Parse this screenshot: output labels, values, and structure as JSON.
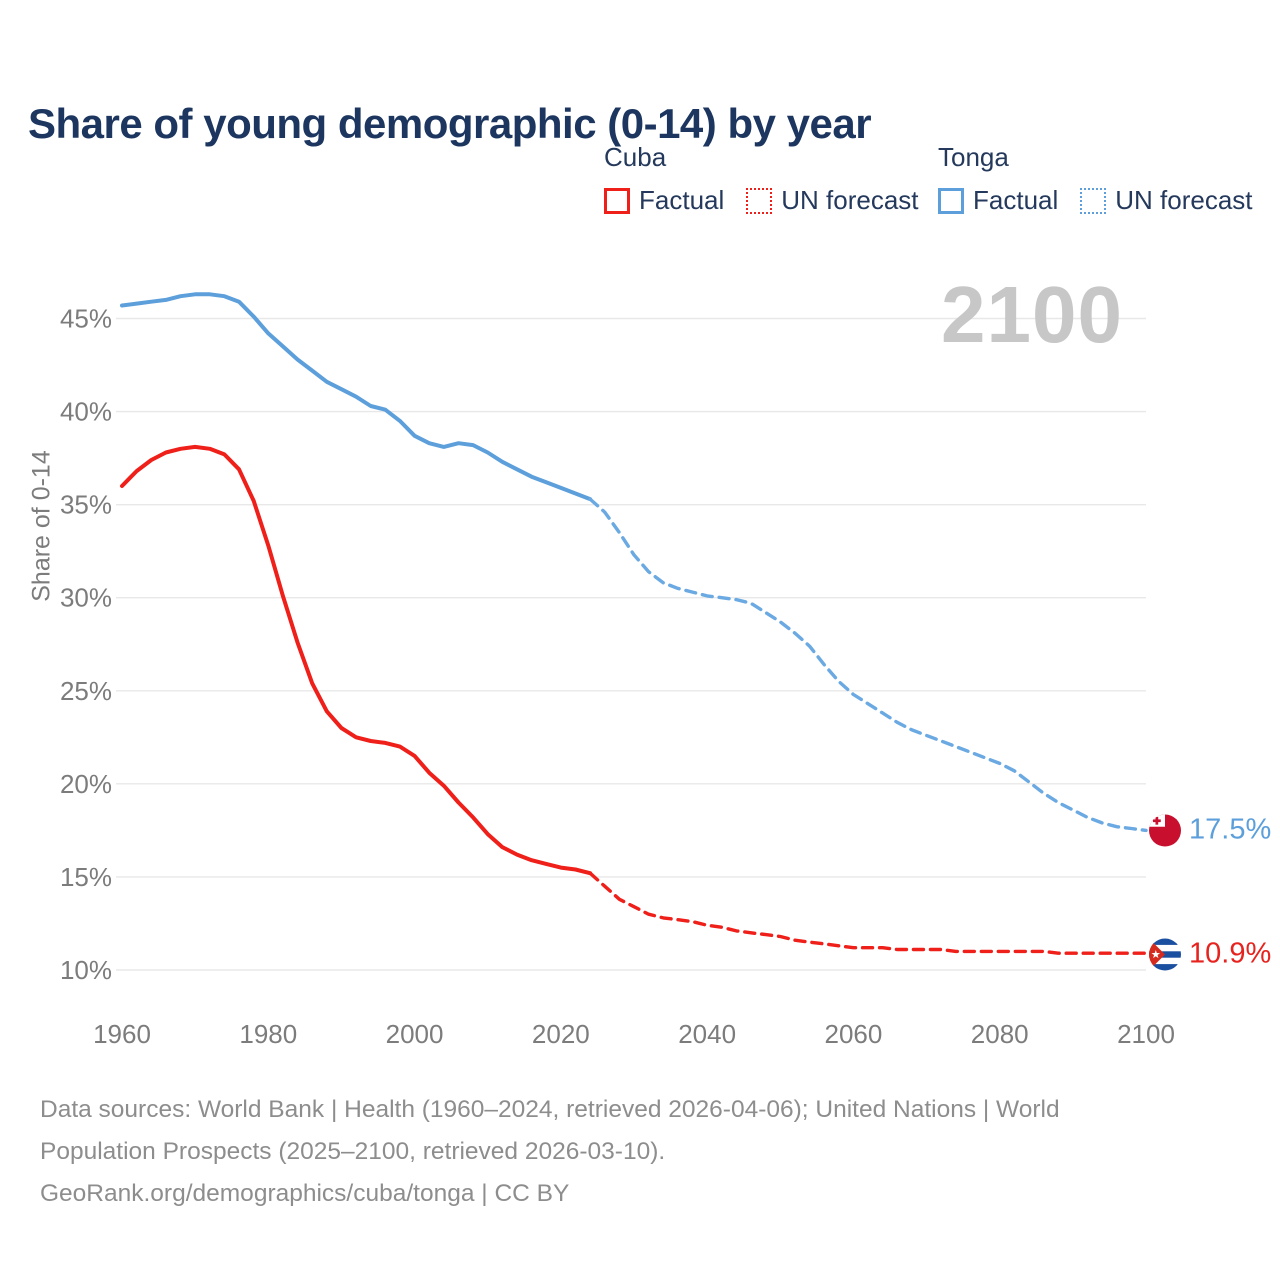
{
  "title": "Share of young demographic (0-14) by year",
  "watermark": "2100",
  "legend": {
    "groups": [
      {
        "country": "Cuba",
        "color": "#ef1f1a",
        "factual_label": "Factual",
        "forecast_label": "UN forecast"
      },
      {
        "country": "Tonga",
        "color": "#5c9fdb",
        "factual_label": "Factual",
        "forecast_label": "UN forecast"
      }
    ]
  },
  "end_labels": {
    "tonga": {
      "value": "17.5%",
      "color": "#5c9fdb"
    },
    "cuba": {
      "value": "10.9%",
      "color": "#e6231e"
    }
  },
  "footer": {
    "line1": "Data sources: World Bank | Health (1960–2024, retrieved 2026-04-06); United Nations | World",
    "line2": "Population Prospects (2025–2100, retrieved 2026-03-10).",
    "line3": "GeoRank.org/demographics/cuba/tonga | CC BY"
  },
  "chart_data": {
    "type": "line",
    "title": "Share of young demographic (0-14) by year",
    "xlabel": "",
    "ylabel": "Share of 0-14",
    "x_ticks": [
      1960,
      1980,
      2000,
      2020,
      2040,
      2060,
      2080,
      2100
    ],
    "y_ticks": [
      10,
      15,
      20,
      25,
      30,
      35,
      40,
      45
    ],
    "y_tick_suffix": "%",
    "xlim": [
      1960,
      2100
    ],
    "ylim": [
      8,
      48
    ],
    "grid": "horizontal",
    "legend_position": "top-right",
    "series": [
      {
        "name": "Tonga Factual",
        "country": "Tonga",
        "kind": "factual",
        "color": "#5c9fdb",
        "dashed": false,
        "x": [
          1960,
          1962,
          1964,
          1966,
          1968,
          1970,
          1972,
          1974,
          1976,
          1978,
          1980,
          1982,
          1984,
          1986,
          1988,
          1990,
          1992,
          1994,
          1996,
          1998,
          2000,
          2002,
          2004,
          2006,
          2008,
          2010,
          2012,
          2014,
          2016,
          2018,
          2020,
          2022,
          2024
        ],
        "values": [
          45.7,
          45.8,
          45.9,
          46.0,
          46.2,
          46.3,
          46.3,
          46.2,
          45.9,
          45.1,
          44.2,
          43.5,
          42.8,
          42.2,
          41.6,
          41.2,
          40.8,
          40.3,
          40.1,
          39.5,
          38.7,
          38.3,
          38.1,
          38.3,
          38.2,
          37.8,
          37.3,
          36.9,
          36.5,
          36.2,
          35.9,
          35.6,
          35.3
        ]
      },
      {
        "name": "Tonga UN forecast",
        "country": "Tonga",
        "kind": "forecast",
        "color": "#6aa9e2",
        "dashed": true,
        "x": [
          2024,
          2026,
          2028,
          2030,
          2032,
          2034,
          2036,
          2038,
          2040,
          2042,
          2044,
          2046,
          2048,
          2050,
          2052,
          2054,
          2056,
          2058,
          2060,
          2062,
          2064,
          2066,
          2068,
          2070,
          2072,
          2074,
          2076,
          2078,
          2080,
          2082,
          2084,
          2086,
          2088,
          2090,
          2092,
          2094,
          2096,
          2098,
          2100
        ],
        "values": [
          35.3,
          34.6,
          33.5,
          32.3,
          31.4,
          30.8,
          30.5,
          30.3,
          30.1,
          30.0,
          29.9,
          29.7,
          29.2,
          28.7,
          28.1,
          27.4,
          26.4,
          25.5,
          24.8,
          24.3,
          23.8,
          23.3,
          22.9,
          22.6,
          22.3,
          22.0,
          21.7,
          21.4,
          21.1,
          20.7,
          20.1,
          19.5,
          19.0,
          18.6,
          18.2,
          17.9,
          17.7,
          17.6,
          17.5
        ]
      },
      {
        "name": "Cuba Factual",
        "country": "Cuba",
        "kind": "factual",
        "color": "#ef1f1a",
        "dashed": false,
        "x": [
          1960,
          1962,
          1964,
          1966,
          1968,
          1970,
          1972,
          1974,
          1976,
          1978,
          1980,
          1982,
          1984,
          1986,
          1988,
          1990,
          1992,
          1994,
          1996,
          1998,
          2000,
          2002,
          2004,
          2006,
          2008,
          2010,
          2012,
          2014,
          2016,
          2018,
          2020,
          2022,
          2024
        ],
        "values": [
          36.0,
          36.8,
          37.4,
          37.8,
          38.0,
          38.1,
          38.0,
          37.7,
          36.9,
          35.2,
          32.8,
          30.1,
          27.6,
          25.4,
          23.9,
          23.0,
          22.5,
          22.3,
          22.2,
          22.0,
          21.5,
          20.6,
          19.9,
          19.0,
          18.2,
          17.3,
          16.6,
          16.2,
          15.9,
          15.7,
          15.5,
          15.4,
          15.2
        ]
      },
      {
        "name": "Cuba UN forecast",
        "country": "Cuba",
        "kind": "forecast",
        "color": "#ef1f1a",
        "dashed": true,
        "x": [
          2024,
          2026,
          2028,
          2030,
          2032,
          2034,
          2036,
          2038,
          2040,
          2042,
          2044,
          2046,
          2048,
          2050,
          2052,
          2054,
          2056,
          2058,
          2060,
          2062,
          2064,
          2066,
          2068,
          2070,
          2072,
          2074,
          2076,
          2078,
          2080,
          2082,
          2084,
          2086,
          2088,
          2090,
          2092,
          2094,
          2096,
          2098,
          2100
        ],
        "values": [
          15.2,
          14.5,
          13.8,
          13.4,
          13.0,
          12.8,
          12.7,
          12.6,
          12.4,
          12.3,
          12.1,
          12.0,
          11.9,
          11.8,
          11.6,
          11.5,
          11.4,
          11.3,
          11.2,
          11.2,
          11.2,
          11.1,
          11.1,
          11.1,
          11.1,
          11.0,
          11.0,
          11.0,
          11.0,
          11.0,
          11.0,
          11.0,
          10.9,
          10.9,
          10.9,
          10.9,
          10.9,
          10.9,
          10.9
        ]
      }
    ]
  }
}
